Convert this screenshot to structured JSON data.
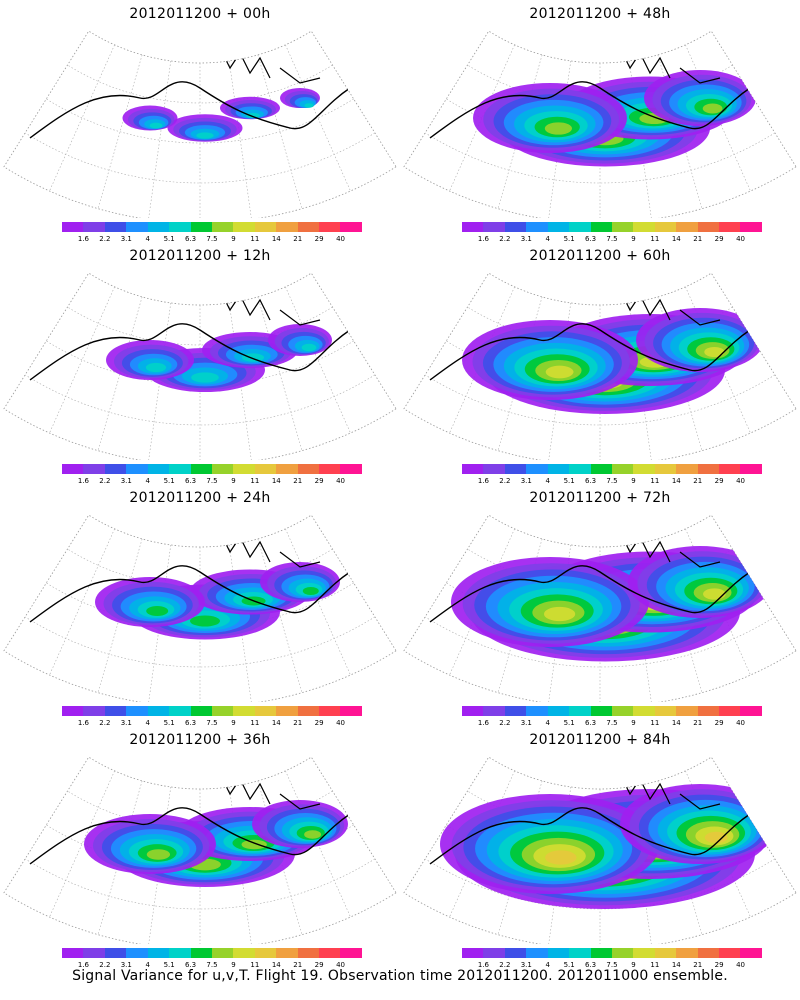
{
  "panels": [
    {
      "title": "2012011200 + 00h",
      "spread": 0.25
    },
    {
      "title": "2012011200 + 48h",
      "spread": 0.7
    },
    {
      "title": "2012011200 + 12h",
      "spread": 0.4
    },
    {
      "title": "2012011200 + 60h",
      "spread": 0.8
    },
    {
      "title": "2012011200 + 24h",
      "spread": 0.5
    },
    {
      "title": "2012011200 + 72h",
      "spread": 0.9
    },
    {
      "title": "2012011200 + 36h",
      "spread": 0.6
    },
    {
      "title": "2012011200 + 84h",
      "spread": 1.0
    }
  ],
  "colorbar": {
    "labels": [
      "1.6",
      "2.2",
      "3.1",
      "4",
      "5.1",
      "6.3",
      "7.5",
      "9",
      "11",
      "14",
      "21",
      "29",
      "40"
    ],
    "colors": [
      "#a020f0",
      "#7f3fe8",
      "#3f4fe8",
      "#1e90ff",
      "#00b4e6",
      "#00d2c8",
      "#00c832",
      "#96d22a",
      "#d2dc32",
      "#e6c83c",
      "#f0a040",
      "#f07040",
      "#ff4050",
      "#ff1493"
    ]
  },
  "caption": "Signal Variance for u,v,T. Flight 19. Observation time 2012011200. 2012011000 ensemble."
}
